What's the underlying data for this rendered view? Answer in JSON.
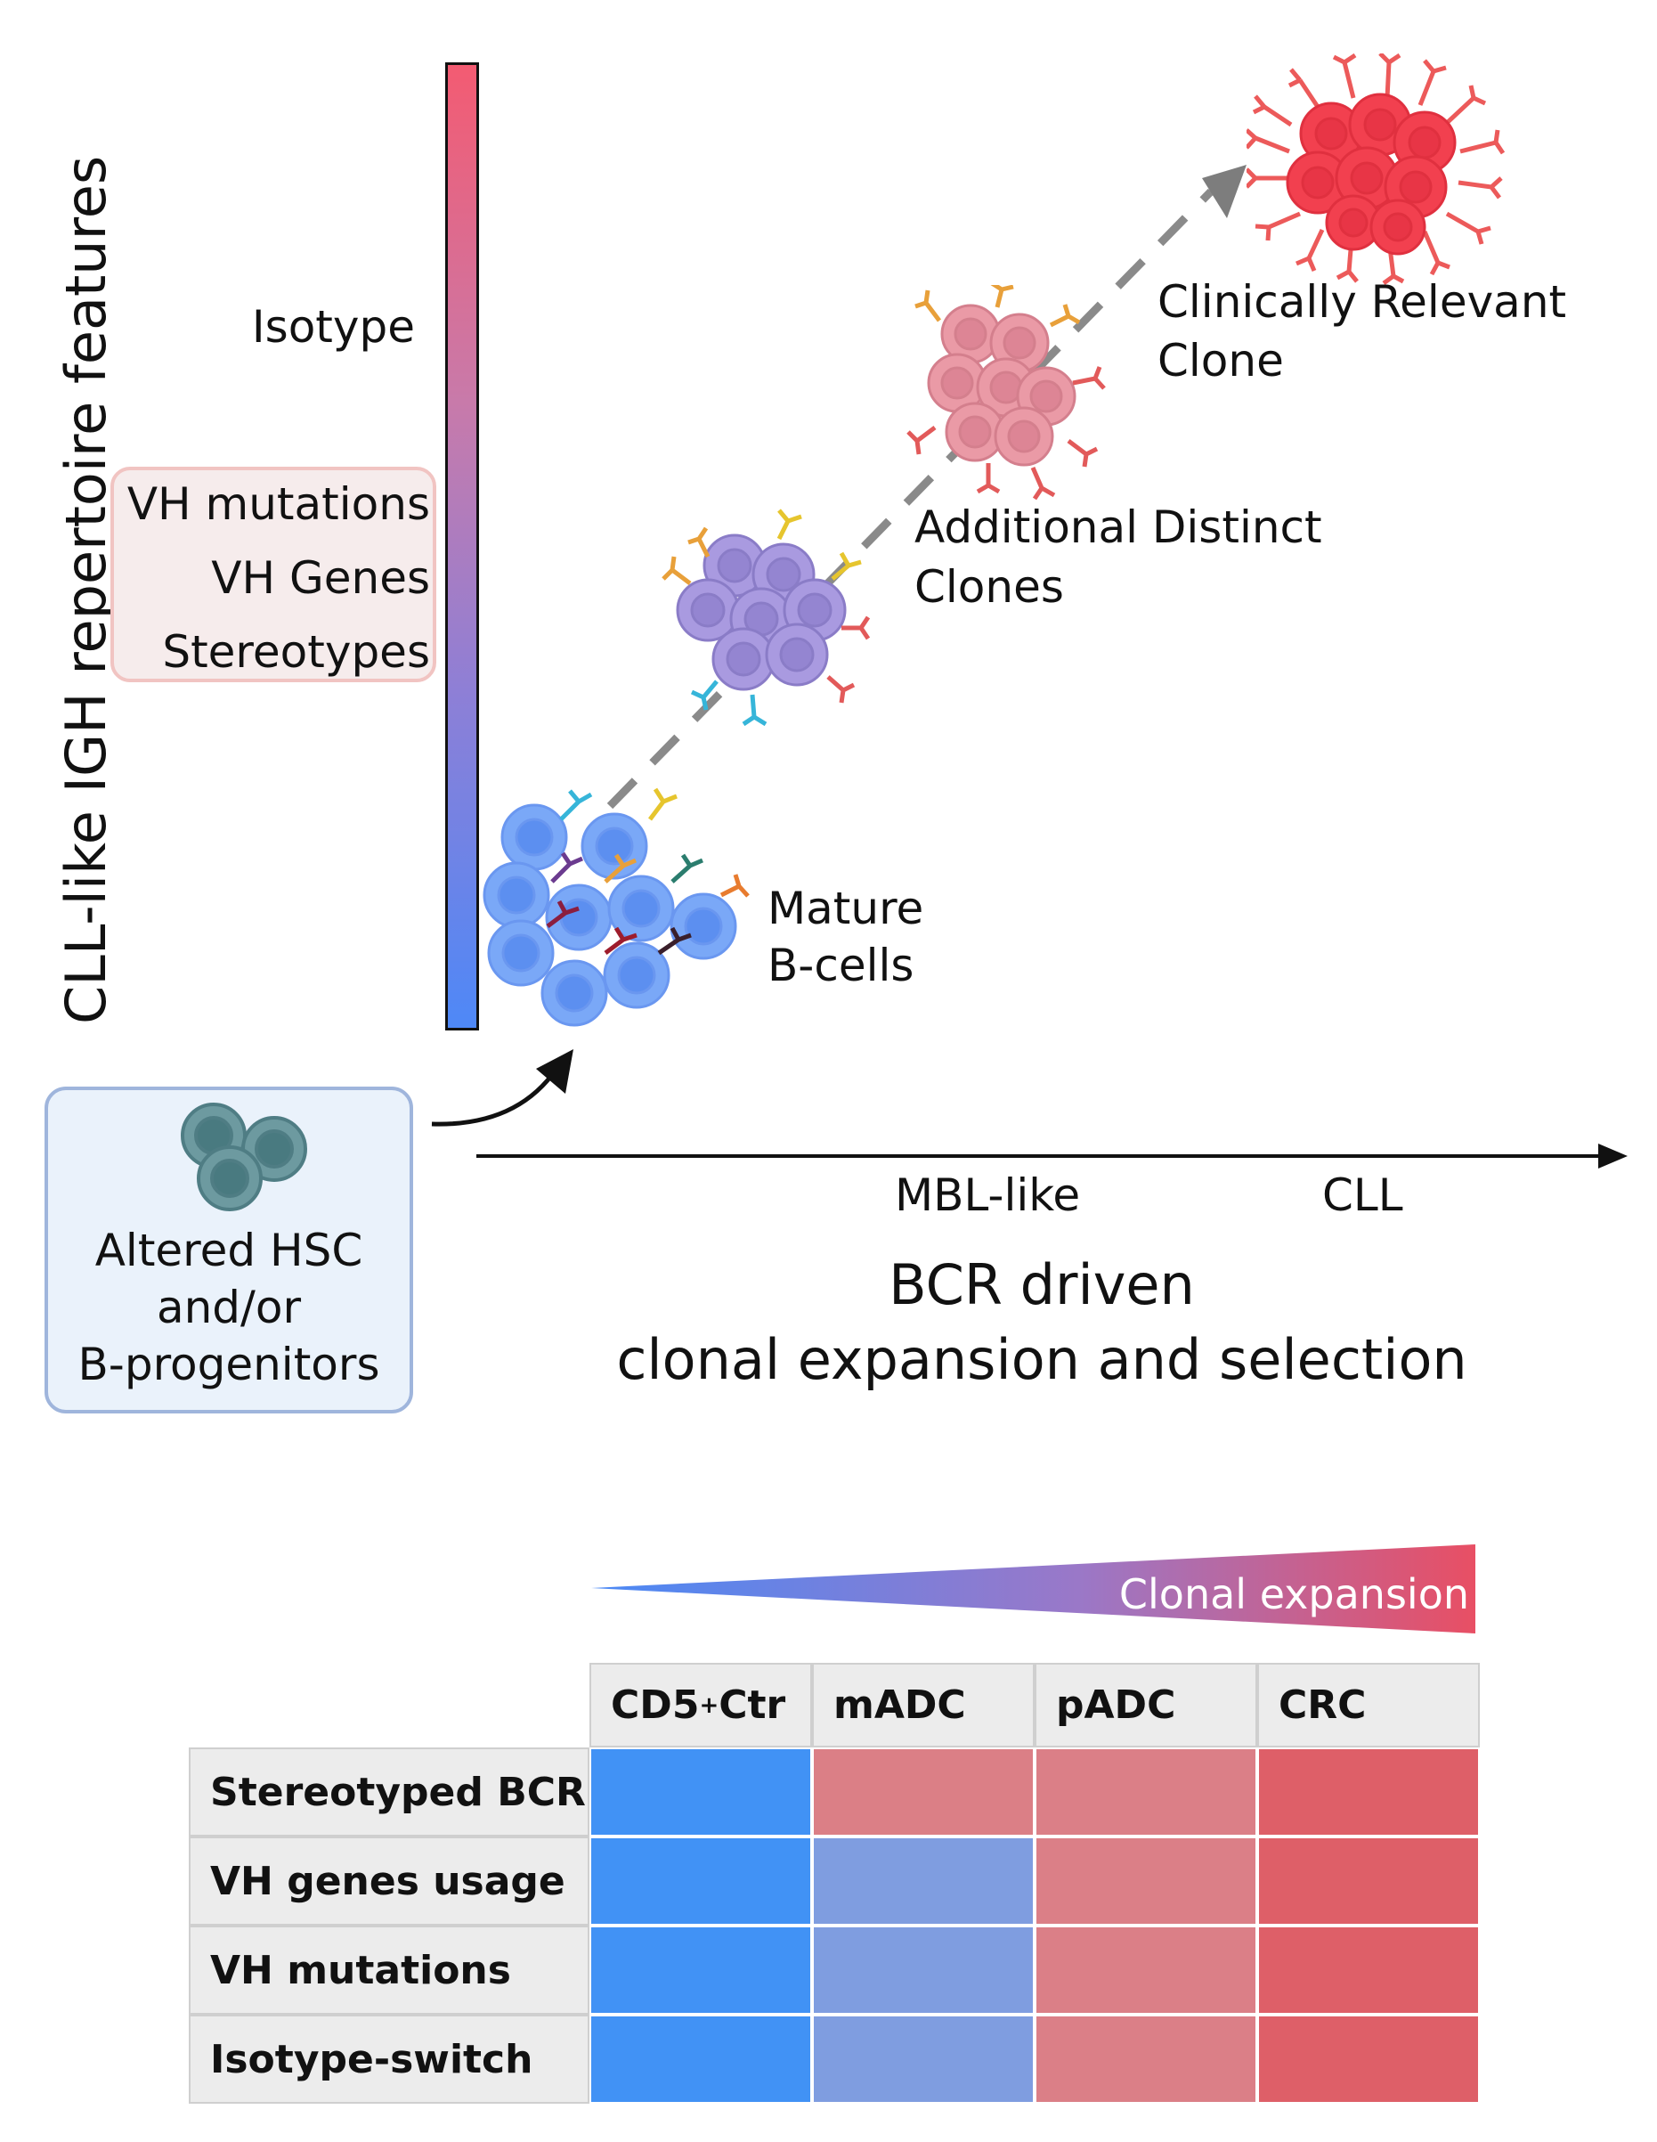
{
  "y_axis_title": "CLL-like IGH repertoire features",
  "feature_bar": {
    "top_label": "Isotype",
    "group_labels": [
      "VH mutations",
      "VH Genes",
      "Stereotypes"
    ]
  },
  "hsc_box": {
    "lines": [
      "Altered HSC",
      "and/or",
      "B-progenitors"
    ]
  },
  "stages": [
    {
      "lines": [
        "Mature",
        "B-cells"
      ]
    },
    {
      "lines": [
        "Additional Distinct",
        "Clones"
      ]
    },
    {
      "lines": [
        "Clinically Relevant",
        "Clone"
      ]
    }
  ],
  "x_axis": {
    "ticks": [
      "MBL-like",
      "CLL"
    ],
    "title_lines": [
      "BCR driven",
      "clonal expansion and selection"
    ]
  },
  "clonal_expansion_label": "Clonal expansion",
  "table": {
    "columns": [
      {
        "main": "CD5",
        "sup": "+",
        "rest": " Ctr"
      },
      {
        "main": "mADC",
        "sup": "",
        "rest": ""
      },
      {
        "main": "pADC",
        "sup": "",
        "rest": ""
      },
      {
        "main": "CRC",
        "sup": "",
        "rest": ""
      }
    ],
    "rows": [
      {
        "label": "Stereotyped BCR",
        "colors": [
          "#4192f5",
          "#db7f86",
          "#db7f87",
          "#de5f68"
        ]
      },
      {
        "label": "VH genes usage",
        "colors": [
          "#4192f5",
          "#7f9de0",
          "#db7f87",
          "#de5f68"
        ]
      },
      {
        "label": "VH mutations",
        "colors": [
          "#4192f5",
          "#7f9de0",
          "#db7f87",
          "#de5f68"
        ]
      },
      {
        "label": "Isotype-switch",
        "colors": [
          "#4192f5",
          "#7f9de0",
          "#db7f87",
          "#de5f68"
        ]
      }
    ]
  }
}
